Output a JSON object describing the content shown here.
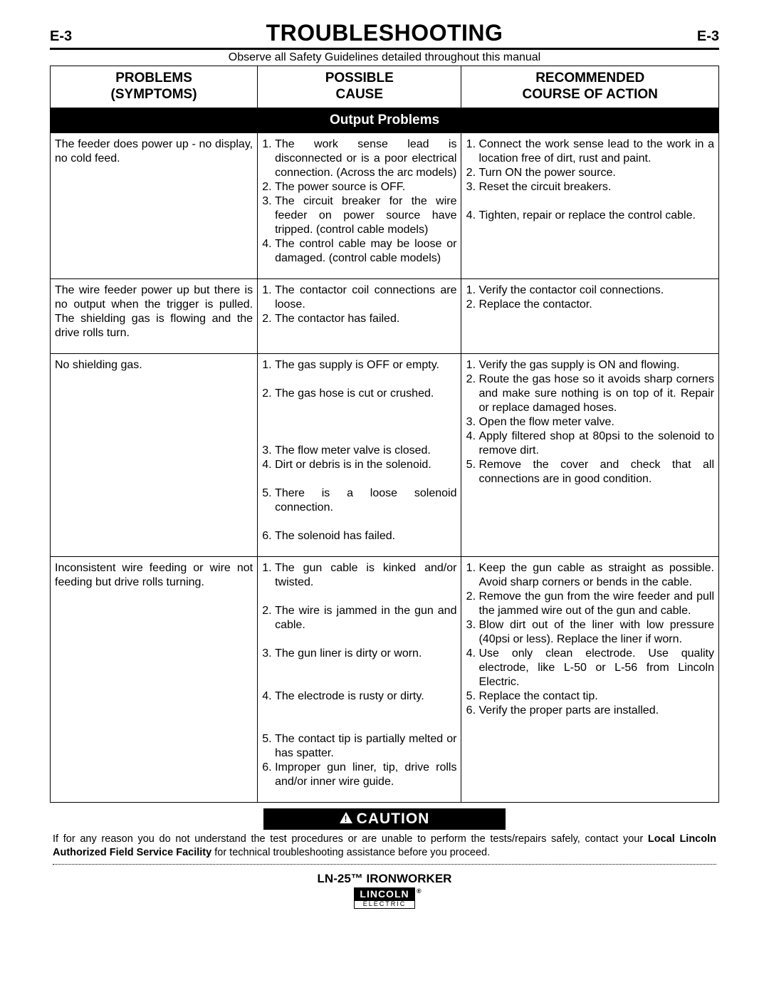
{
  "header": {
    "page_code": "E-3",
    "title": "TROUBLESHOOTING"
  },
  "safety_line": "Observe all Safety Guidelines detailed throughout this manual",
  "columns": {
    "c1a": "PROBLEMS",
    "c1b": "(SYMPTOMS)",
    "c2a": "POSSIBLE",
    "c2b": "CAUSE",
    "c3a": "RECOMMENDED",
    "c3b": "COURSE OF ACTION"
  },
  "section_title": "Output Problems",
  "rows": [
    {
      "problem": "The feeder does power up - no display, no cold feed.",
      "causes": [
        "The work sense lead is disconnected or is a poor electrical connection.  (Across the arc models)",
        "The power source is OFF.",
        "The circuit breaker for the wire feeder on power source have tripped.  (control cable models)",
        "The control cable may be loose or damaged.  (control cable models)"
      ],
      "actions": [
        "Connect the work sense lead to the work in a location free of dirt, rust and paint.",
        "Turn ON the power source.",
        "Reset the circuit breakers.",
        "Tighten, repair or replace the control cable."
      ],
      "action_spacers": [
        0,
        0,
        1,
        1
      ]
    },
    {
      "problem": "The wire feeder power up but there is no output when the trigger is pulled.  The shielding gas is flowing and the drive rolls turn.",
      "causes": [
        "The contactor coil connections are loose.",
        "The contactor has failed."
      ],
      "actions": [
        "Verify the contactor coil connections.",
        "Replace the contactor."
      ],
      "action_spacers": [
        0,
        0
      ]
    },
    {
      "problem": "No shielding gas.",
      "causes": [
        "The gas supply is OFF or empty.",
        "The gas hose is cut or crushed.",
        "The flow meter valve is closed.",
        "Dirt or debris is in the solenoid.",
        "There is a loose solenoid connection.",
        "The solenoid has failed."
      ],
      "actions": [
        "Verify the gas supply is ON and flowing.",
        "Route the gas hose so it avoids sharp corners and make sure nothing is on top of it.  Repair or replace damaged hoses.",
        "Open the flow meter valve.",
        "Apply filtered shop at 80psi to the solenoid to remove dirt.",
        "Remove the cover and check that all connections are in good condition."
      ],
      "cause_spacers": [
        1,
        3,
        0,
        1,
        1,
        0
      ],
      "action_spacers": [
        0,
        0,
        0,
        0,
        0
      ]
    },
    {
      "problem": "Inconsistent wire feeding or wire not feeding but drive rolls turning.",
      "causes": [
        "The gun cable is kinked and/or twisted.",
        "The wire is jammed in the gun and cable.",
        "The gun liner is dirty or worn.",
        "The electrode is rusty or dirty.",
        "The contact tip is partially melted or has spatter.",
        "Improper gun liner, tip, drive rolls and/or inner wire guide."
      ],
      "actions": [
        "Keep the gun cable as straight as possible. Avoid sharp corners or bends in the cable.",
        "Remove the gun from the wire feeder and pull the jammed wire out of the gun and cable.",
        "Blow dirt out of the liner with low pressure (40psi or less). Replace the liner if worn.",
        "Use only clean electrode. Use quality electrode, like L-50 or L-56 from Lincoln Electric.",
        "Replace the contact tip.",
        "Verify the proper parts are installed."
      ],
      "cause_spacers": [
        1,
        1,
        2,
        2,
        0,
        0
      ],
      "action_spacers": [
        0,
        0,
        0,
        0,
        0,
        0
      ]
    }
  ],
  "caution_label": "CAUTION",
  "caution_text_pre": "If for any reason you do not understand the test procedures or are unable to perform the tests/repairs safely, contact your ",
  "caution_text_bold": "Local Lincoln Authorized Field Service Facility",
  "caution_text_post": " for technical troubleshooting assistance before you proceed.",
  "footer": {
    "product": "LN-25™ IRONWORKER",
    "logo_top": "LINCOLN",
    "logo_bot": "ELECTRIC"
  },
  "col_widths": [
    "31%",
    "30.5%",
    "38.5%"
  ]
}
